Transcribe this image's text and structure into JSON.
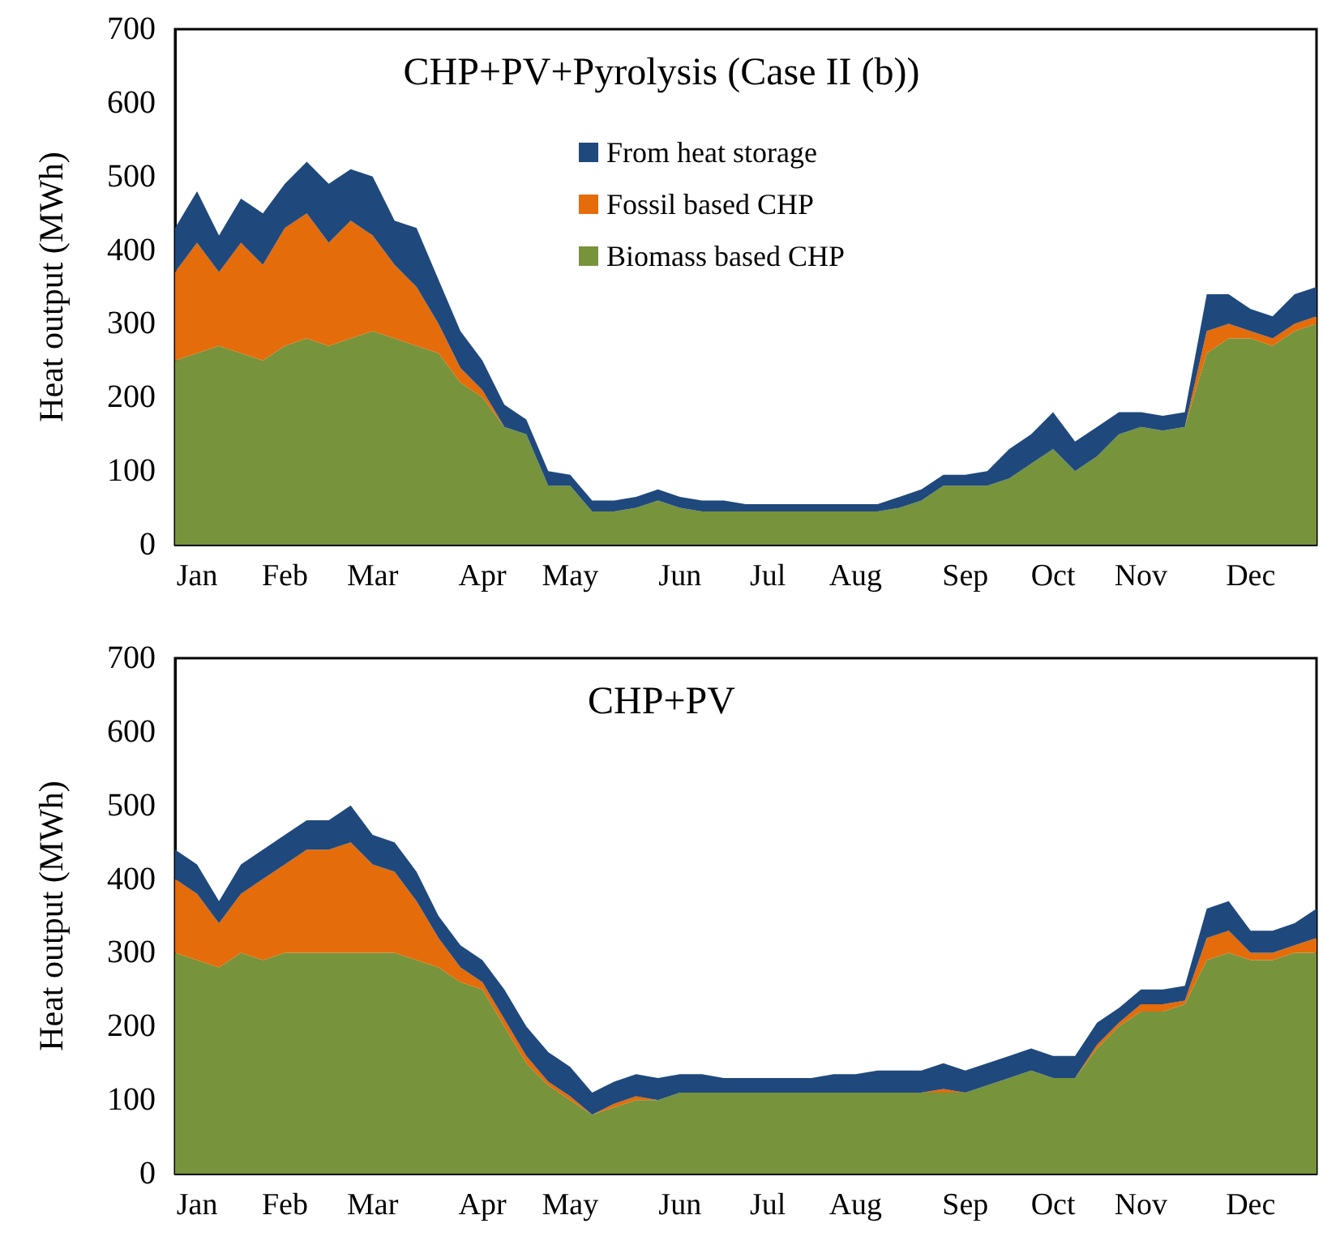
{
  "chart_data": [
    {
      "type": "area",
      "title": "CHP+PV+Pyrolysis (Case II (b))",
      "ylabel": "Heat output (MWh)",
      "stacked": true,
      "legend": "top",
      "grid": false,
      "categories": [
        null,
        "Jan",
        null,
        null,
        null,
        "Feb",
        null,
        null,
        null,
        "Mar",
        null,
        null,
        null,
        null,
        "Apr",
        null,
        null,
        null,
        "May",
        null,
        null,
        null,
        null,
        "Jun",
        null,
        null,
        null,
        "Jul",
        null,
        null,
        null,
        "Aug",
        null,
        null,
        null,
        null,
        "Sep",
        null,
        null,
        null,
        "Oct",
        null,
        null,
        null,
        "Nov",
        null,
        null,
        null,
        null,
        "Dec",
        null,
        null,
        null
      ],
      "ylim": [
        0,
        700
      ],
      "yticks": [
        0,
        100,
        200,
        300,
        400,
        500,
        600,
        700
      ],
      "series": [
        {
          "name": "Biomass based CHP",
          "color": "#77933c",
          "values": [
            250,
            260,
            270,
            260,
            250,
            270,
            280,
            270,
            280,
            290,
            280,
            270,
            260,
            220,
            200,
            160,
            150,
            80,
            80,
            45,
            45,
            50,
            60,
            50,
            45,
            45,
            45,
            45,
            45,
            45,
            45,
            45,
            45,
            50,
            60,
            80,
            80,
            80,
            90,
            110,
            130,
            100,
            120,
            150,
            160,
            155,
            160,
            260,
            280,
            280,
            270,
            290,
            300
          ]
        },
        {
          "name": "Fossil based CHP",
          "color": "#e46c0a",
          "values": [
            120,
            150,
            100,
            150,
            130,
            160,
            170,
            140,
            160,
            130,
            100,
            80,
            40,
            20,
            10,
            0,
            0,
            0,
            0,
            0,
            0,
            0,
            0,
            0,
            0,
            0,
            0,
            0,
            0,
            0,
            0,
            0,
            0,
            0,
            0,
            0,
            0,
            0,
            0,
            0,
            0,
            0,
            0,
            0,
            0,
            0,
            0,
            30,
            20,
            10,
            10,
            10,
            10
          ]
        },
        {
          "name": "From heat storage",
          "color": "#1f497d",
          "values": [
            60,
            70,
            50,
            60,
            70,
            60,
            70,
            80,
            70,
            80,
            60,
            80,
            60,
            50,
            40,
            30,
            20,
            20,
            15,
            15,
            15,
            15,
            15,
            15,
            15,
            15,
            10,
            10,
            10,
            10,
            10,
            10,
            10,
            15,
            15,
            15,
            15,
            20,
            40,
            40,
            50,
            40,
            40,
            30,
            20,
            20,
            20,
            50,
            40,
            30,
            30,
            40,
            40
          ]
        }
      ]
    },
    {
      "type": "area",
      "title": "CHP+PV",
      "ylabel": "Heat output (MWh)",
      "stacked": true,
      "grid": false,
      "categories": [
        null,
        "Jan",
        null,
        null,
        null,
        "Feb",
        null,
        null,
        null,
        "Mar",
        null,
        null,
        null,
        null,
        "Apr",
        null,
        null,
        null,
        "May",
        null,
        null,
        null,
        null,
        "Jun",
        null,
        null,
        null,
        "Jul",
        null,
        null,
        null,
        "Aug",
        null,
        null,
        null,
        null,
        "Sep",
        null,
        null,
        null,
        "Oct",
        null,
        null,
        null,
        "Nov",
        null,
        null,
        null,
        null,
        "Dec",
        null,
        null,
        null
      ],
      "ylim": [
        0,
        700
      ],
      "yticks": [
        0,
        100,
        200,
        300,
        400,
        500,
        600,
        700
      ],
      "series": [
        {
          "color": "#77933c",
          "values": [
            300,
            290,
            280,
            300,
            290,
            300,
            300,
            300,
            300,
            300,
            300,
            290,
            280,
            260,
            250,
            200,
            150,
            120,
            100,
            80,
            90,
            100,
            100,
            110,
            110,
            110,
            110,
            110,
            110,
            110,
            110,
            110,
            110,
            110,
            110,
            110,
            110,
            120,
            130,
            140,
            130,
            130,
            170,
            200,
            220,
            220,
            230,
            290,
            300,
            290,
            290,
            300,
            300
          ]
        },
        {
          "color": "#e46c0a",
          "values": [
            100,
            90,
            60,
            80,
            110,
            120,
            140,
            140,
            150,
            120,
            110,
            80,
            40,
            20,
            10,
            10,
            10,
            5,
            5,
            0,
            5,
            5,
            0,
            0,
            0,
            0,
            0,
            0,
            0,
            0,
            0,
            0,
            0,
            0,
            0,
            5,
            0,
            0,
            0,
            0,
            0,
            0,
            5,
            5,
            10,
            10,
            5,
            30,
            30,
            10,
            10,
            10,
            20
          ]
        },
        {
          "color": "#1f497d",
          "values": [
            40,
            40,
            30,
            40,
            40,
            40,
            40,
            40,
            50,
            40,
            40,
            40,
            30,
            30,
            30,
            40,
            40,
            40,
            40,
            30,
            30,
            30,
            30,
            25,
            25,
            20,
            20,
            20,
            20,
            20,
            25,
            25,
            30,
            30,
            30,
            35,
            30,
            30,
            30,
            30,
            30,
            30,
            30,
            20,
            20,
            20,
            20,
            40,
            40,
            30,
            30,
            30,
            40
          ]
        }
      ]
    }
  ]
}
